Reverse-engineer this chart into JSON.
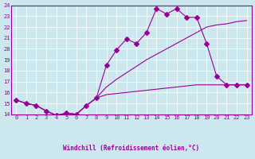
{
  "xlabel": "Windchill (Refroidissement éolien,°C)",
  "ylabel": "",
  "background_color": "#cce8ee",
  "line_color": "#990099",
  "xlim": [
    0,
    23
  ],
  "ylim": [
    14,
    24
  ],
  "xticks": [
    0,
    1,
    2,
    3,
    4,
    5,
    6,
    7,
    8,
    9,
    10,
    11,
    12,
    13,
    14,
    15,
    16,
    17,
    18,
    19,
    20,
    21,
    22,
    23
  ],
  "yticks": [
    14,
    15,
    16,
    17,
    18,
    19,
    20,
    21,
    22,
    23,
    24
  ],
  "series": [
    {
      "x": [
        0,
        1,
        2,
        3,
        4,
        5,
        6,
        7,
        8,
        9,
        10,
        11,
        12,
        13,
        14,
        15,
        16,
        17,
        18,
        19,
        20,
        21,
        22,
        23
      ],
      "y": [
        15.3,
        15.0,
        14.8,
        14.3,
        13.9,
        14.1,
        14.0,
        14.8,
        15.5,
        18.5,
        19.9,
        20.9,
        20.5,
        21.5,
        23.7,
        23.2,
        23.7,
        22.9,
        22.9,
        20.5,
        17.5,
        16.7,
        16.7,
        16.7
      ],
      "marker": "D",
      "markersize": 3
    },
    {
      "x": [
        0,
        1,
        2,
        3,
        4,
        5,
        6,
        7,
        8,
        9,
        10,
        11,
        12,
        13,
        14,
        15,
        16,
        17,
        18,
        19,
        20,
        21,
        22,
        23
      ],
      "y": [
        15.3,
        15.0,
        14.8,
        14.3,
        13.9,
        14.1,
        14.0,
        14.8,
        15.5,
        16.5,
        17.2,
        17.8,
        18.4,
        19.0,
        19.5,
        20.0,
        20.5,
        21.0,
        21.5,
        22.0,
        22.2,
        22.3,
        22.5,
        22.6
      ],
      "marker": null,
      "markersize": 0
    },
    {
      "x": [
        0,
        1,
        2,
        3,
        4,
        5,
        6,
        7,
        8,
        9,
        10,
        11,
        12,
        13,
        14,
        15,
        16,
        17,
        18,
        19,
        20,
        21,
        22,
        23
      ],
      "y": [
        15.3,
        15.0,
        14.8,
        14.3,
        13.9,
        14.1,
        14.0,
        14.8,
        15.5,
        15.8,
        15.9,
        16.0,
        16.1,
        16.2,
        16.3,
        16.4,
        16.5,
        16.6,
        16.7,
        16.7,
        16.7,
        16.7,
        16.7,
        16.7
      ],
      "marker": null,
      "markersize": 0
    }
  ]
}
